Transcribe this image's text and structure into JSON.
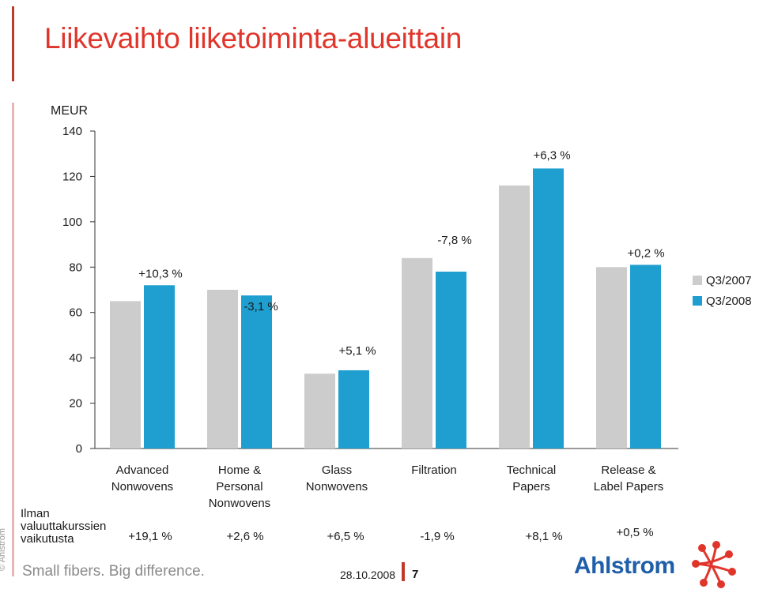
{
  "title": "Liikevaihto liiketoiminta-alueittain",
  "chart_data": {
    "type": "bar",
    "ylabel": "MEUR",
    "ylim": [
      0,
      140
    ],
    "yticks": [
      0,
      20,
      40,
      60,
      80,
      100,
      120,
      140
    ],
    "grid": false,
    "legend_placement": "right",
    "categories": [
      [
        "Advanced",
        "Nonwovens"
      ],
      [
        "Home &",
        "Personal",
        "Nonwovens"
      ],
      [
        "Glass",
        "Nonwovens"
      ],
      [
        "Filtration"
      ],
      [
        "Technical",
        "Papers"
      ],
      [
        "Release &",
        "Label Papers"
      ]
    ],
    "series": [
      {
        "name": "Q3/2007",
        "color": "#cccccc",
        "values": [
          65,
          70,
          33,
          84,
          116,
          80
        ]
      },
      {
        "name": "Q3/2008",
        "color": "#1e9fd0",
        "values": [
          72,
          67.5,
          34.5,
          78,
          123.5,
          81
        ]
      }
    ],
    "change_labels": [
      "+10,3 %",
      "-3,1 %",
      "+5,1 %",
      "-7,8 %",
      "+6,3 %",
      "+0,2 %"
    ],
    "constant_currency_label": [
      "Ilman",
      "valuuttakurssien",
      "vaikutusta"
    ],
    "constant_currency_changes": [
      "+19,1 %",
      "+2,6 %",
      "+6,5 %",
      "-1,9 %",
      "+8,1 %",
      "+0,5 %"
    ]
  },
  "footer": {
    "copyright": "© Ahlstrom",
    "slogan": "Small fibers. Big difference.",
    "date": "28.10.2008",
    "page": "7",
    "logo_text": "Ahlstrom"
  }
}
